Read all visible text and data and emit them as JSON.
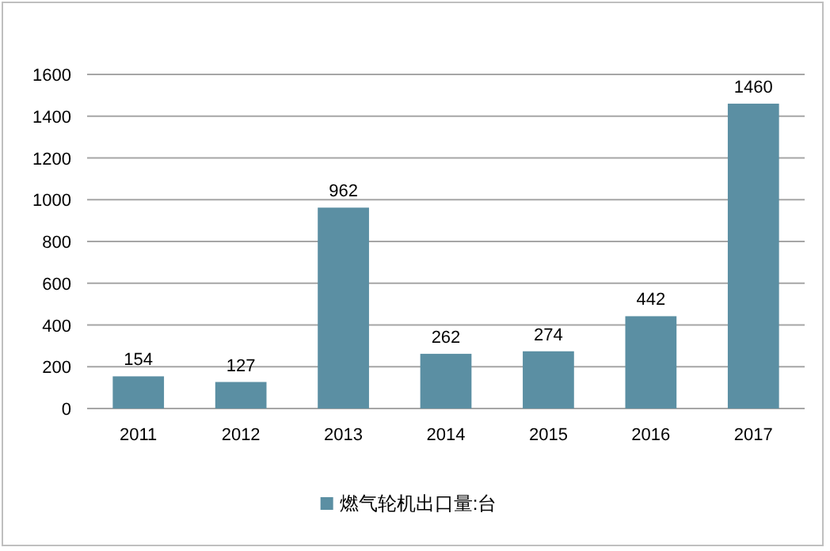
{
  "chart_data": {
    "type": "bar",
    "categories": [
      "2011",
      "2012",
      "2013",
      "2014",
      "2015",
      "2016",
      "2017"
    ],
    "series": [
      {
        "name": "燃气轮机出口量:台",
        "color": "#5b8fa3",
        "values": [
          154,
          127,
          962,
          262,
          274,
          442,
          1460
        ]
      }
    ],
    "ylim": [
      0,
      1600
    ],
    "yticks": [
      0,
      200,
      400,
      600,
      800,
      1000,
      1200,
      1400,
      1600
    ],
    "grid": "y",
    "legend": "bottom",
    "data_labels": true
  }
}
